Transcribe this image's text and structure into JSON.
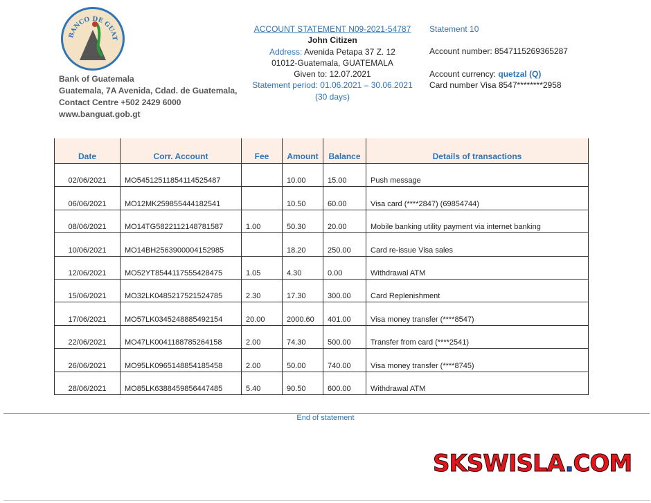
{
  "bank": {
    "logo_text": "BANCO DE GUATEMALA",
    "name": "Bank of Guatemala",
    "address": "Guatemala, 7A Avenida, Cdad. de Guatemala,",
    "contact": "Contact Centre +502 2429 6000",
    "website": "www.banguat.gob.gt"
  },
  "statement": {
    "title": "ACCOUNT STATEMENT N09-2021-54787",
    "customer": "John Citizen",
    "address_label": "Address:",
    "address_line1": "Avenida Petapa 37 Z. 12",
    "address_line2": "01012-Guatemala, GUATEMALA",
    "given_to": "Given to: 12.07.2021",
    "period": "Statement period: 01.06.2021 – 30.06.2021",
    "days": "(30 days)"
  },
  "account": {
    "statement_no": "Statement  10",
    "account_number": "Account number: 8547115269365287",
    "currency_label": "Account currency:",
    "currency": "quetzal (Q)",
    "card": "Card number Visa  8547********2958"
  },
  "table": {
    "headers": [
      "Date",
      "Corr. Account",
      "Fee",
      "Amount",
      "Balance",
      "Details of transactions"
    ],
    "rows": [
      [
        "02/06/2021",
        "MO54512511854114525487",
        "",
        "10.00",
        "15.00",
        "Push message"
      ],
      [
        "06/06/2021",
        "MO12MK259855444182541",
        "",
        "10.50",
        "60.00",
        "Visa  card (****2847) (69854744)"
      ],
      [
        "08/06/2021",
        "MO14TG5822112148781587",
        "1.00",
        "50.30",
        "20.00",
        "Mobile banking utility payment via internet banking"
      ],
      [
        "10/06/2021",
        "MO14BH2563900004152985",
        "",
        "18.20",
        "250.00",
        "Card re-issue Visa sales"
      ],
      [
        "12/06/2021",
        "MO52YT8544117555428475",
        "1.05",
        "4.30",
        "0.00",
        "Withdrawal ATM"
      ],
      [
        "15/06/2021",
        "MO32LK0485217521524785",
        "2.30",
        "17.30",
        "300.00",
        "Card Replenishment"
      ],
      [
        "17/06/2021",
        "MO57LK0345248885492154",
        "20.00",
        "2000.60",
        "401.00",
        "Visa  money transfer (****8547)"
      ],
      [
        "22/06/2021",
        "MO47LK0041188785264158",
        "2.00",
        "74.30",
        "500.00",
        "Transfer from card (****2541)"
      ],
      [
        "26/06/2021",
        "MO95LK0965148854185458",
        "2.00",
        "50.00",
        "740.00",
        "Visa money transfer (****8745)"
      ],
      [
        "28/06/2021",
        "MO85LK6388459856447485",
        "5.40",
        "90.50",
        "600.00",
        "Withdrawal ATM"
      ]
    ]
  },
  "footer": {
    "end": "End of statement",
    "watermark_main": "SKSWISLA",
    "watermark_dot": ".",
    "watermark_tld": "COM"
  }
}
